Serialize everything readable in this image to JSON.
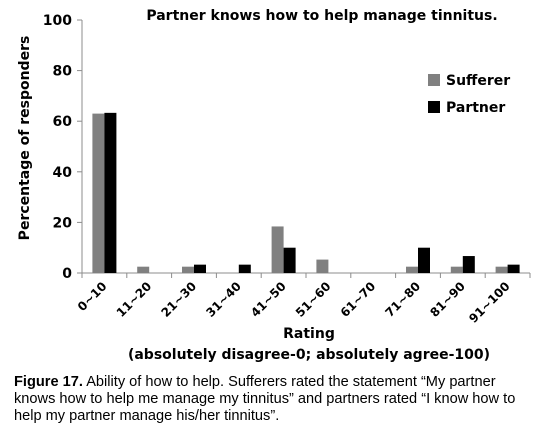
{
  "chart_data": {
    "type": "bar",
    "title": "Partner knows how to help manage tinnitus.",
    "xlabel": "Rating",
    "xlabel_note": "(absolutely disagree-0; absolutely agree-100)",
    "ylabel": "Percentage of responders",
    "ylim": [
      0,
      100
    ],
    "yticks": [
      0,
      20,
      40,
      60,
      80,
      100
    ],
    "grid": false,
    "legend_position": "top-right",
    "categories": [
      "0~10",
      "11~20",
      "21~30",
      "31~40",
      "41~50",
      "51~60",
      "61~70",
      "71~80",
      "81~90",
      "91~100"
    ],
    "series": [
      {
        "name": "Sufferer",
        "color": "#808080",
        "values": [
          63,
          2.5,
          2.5,
          0,
          18.4,
          5.3,
          0,
          2.5,
          2.5,
          2.5
        ]
      },
      {
        "name": "Partner",
        "color": "#000000",
        "values": [
          63.3,
          0,
          3.3,
          3.3,
          10,
          0,
          0,
          10,
          6.7,
          3.3
        ]
      }
    ]
  },
  "caption": {
    "label": "Figure 17.",
    "text": "Ability of how to help. Sufferers rated the statement “My partner knows how to help me manage my tinnitus” and partners rated “I know how to help my partner manage his/her tinnitus”."
  }
}
